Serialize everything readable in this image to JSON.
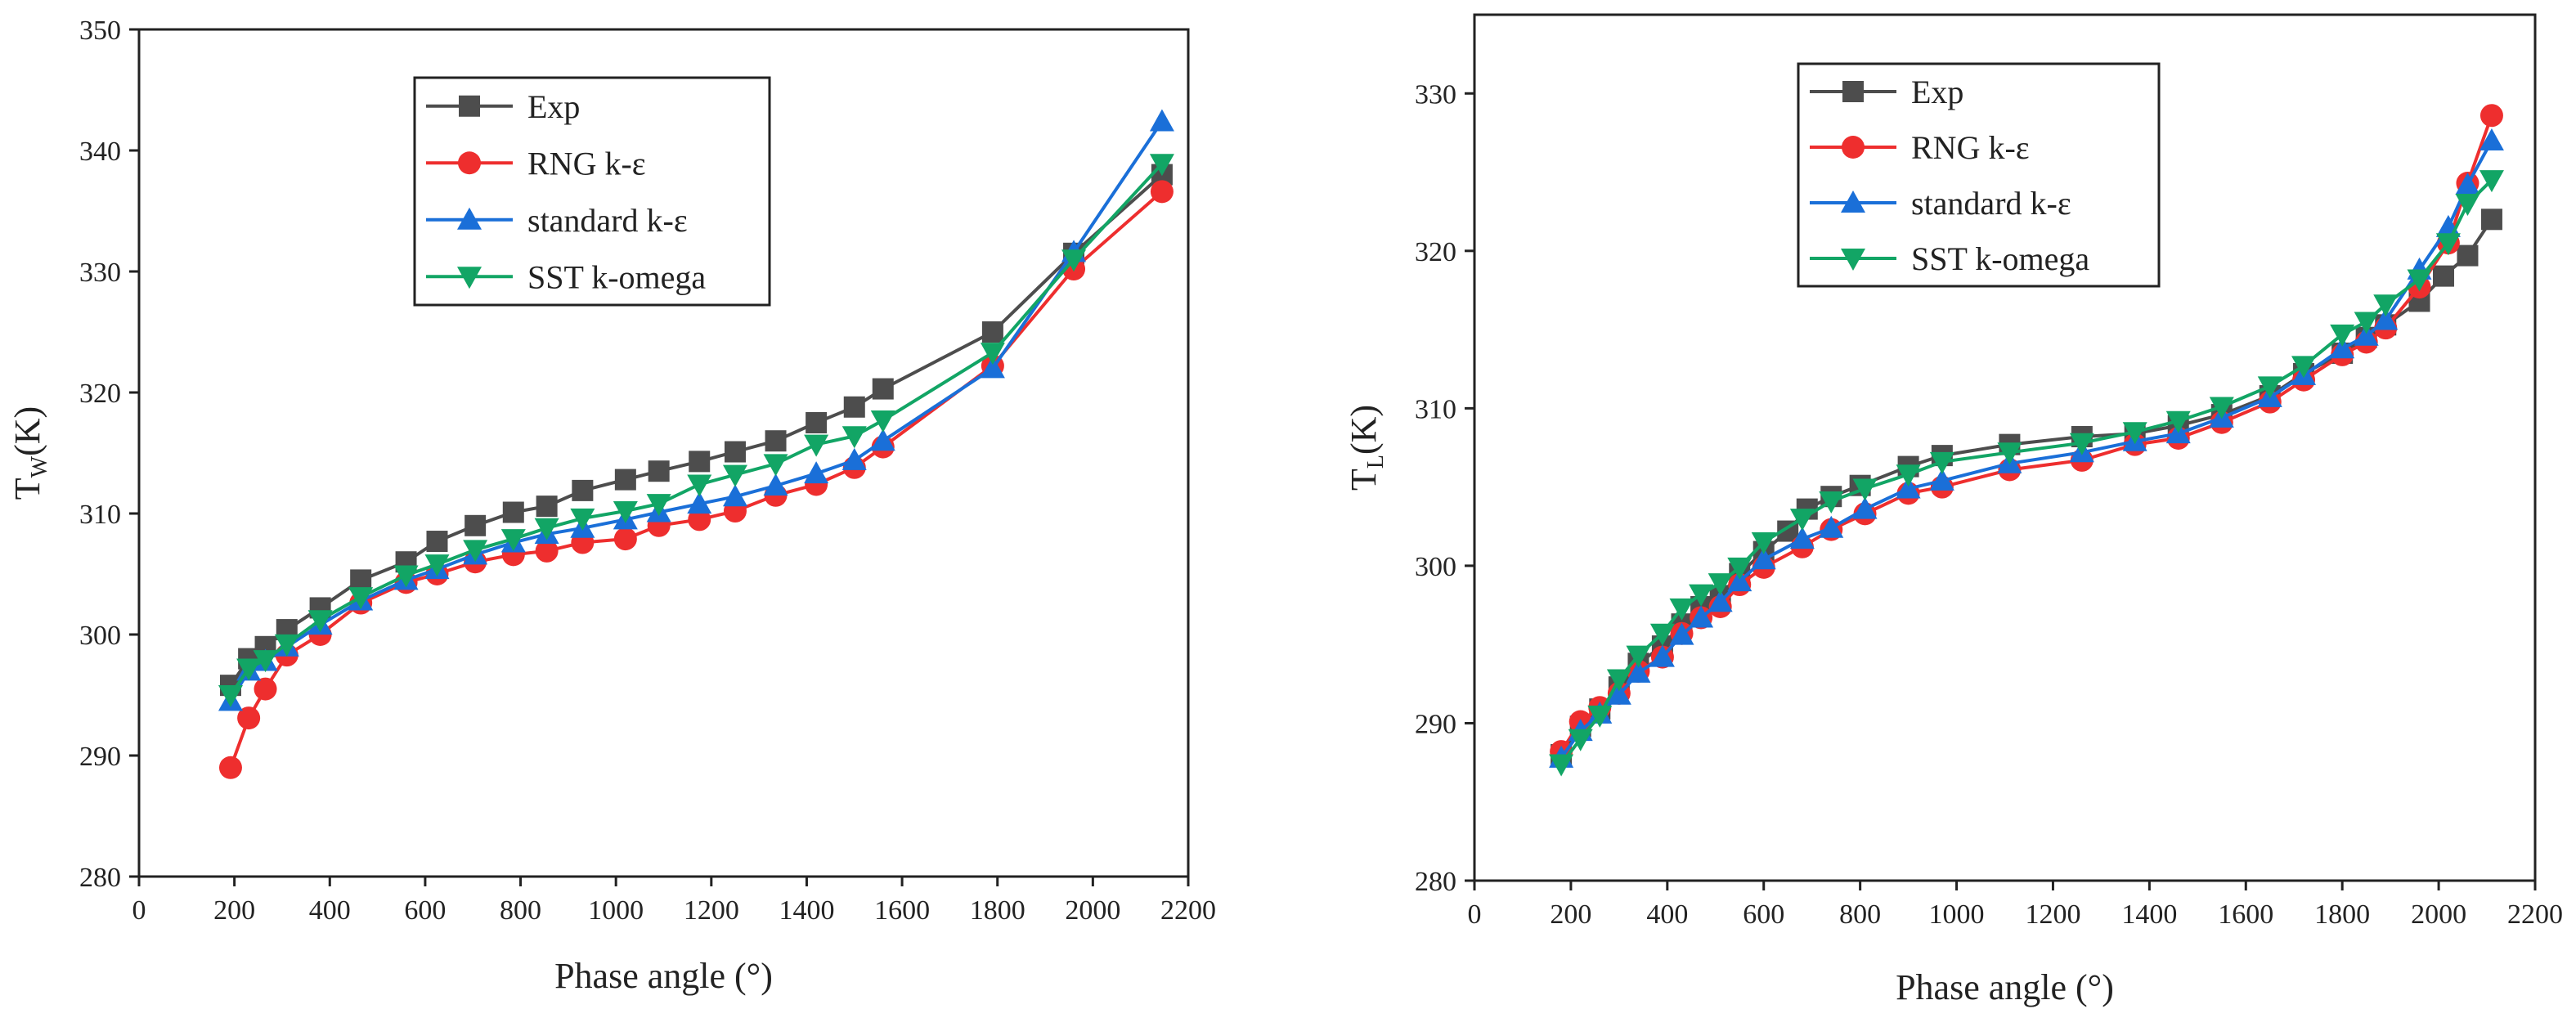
{
  "chart_data": [
    {
      "type": "line",
      "title": "",
      "xlabel": "Phase angle (°)",
      "ylabel_main": "T",
      "ylabel_sub": "W",
      "ylabel_unit": "(K)",
      "xlim": [
        0,
        2200
      ],
      "ylim": [
        280,
        350
      ],
      "xticks": [
        0,
        200,
        400,
        600,
        800,
        1000,
        1200,
        1400,
        1600,
        1800,
        2000,
        2200
      ],
      "yticks": [
        280,
        290,
        300,
        310,
        320,
        330,
        340,
        350
      ],
      "legend_position": "top-center",
      "series": [
        {
          "name": "Exp",
          "color": "#4d4d4d",
          "marker": "square",
          "points": [
            [
              192,
              295.8
            ],
            [
              230,
              298
            ],
            [
              265,
              299
            ],
            [
              310,
              300.4
            ],
            [
              380,
              302.2
            ],
            [
              465,
              304.5
            ],
            [
              560,
              306
            ],
            [
              625,
              307.7
            ],
            [
              705,
              309
            ],
            [
              785,
              310.1
            ],
            [
              855,
              310.6
            ],
            [
              930,
              311.9
            ],
            [
              1020,
              312.8
            ],
            [
              1090,
              313.5
            ],
            [
              1175,
              314.3
            ],
            [
              1250,
              315.1
            ],
            [
              1335,
              316
            ],
            [
              1420,
              317.5
            ],
            [
              1500,
              318.8
            ],
            [
              1560,
              320.3
            ],
            [
              1790,
              325
            ],
            [
              1960,
              331.5
            ],
            [
              2145,
              338
            ]
          ]
        },
        {
          "name": "RNG k-ε",
          "color": "#ee2e2e",
          "marker": "circle",
          "points": [
            [
              192,
              289
            ],
            [
              230,
              293.1
            ],
            [
              265,
              295.5
            ],
            [
              310,
              298.3
            ],
            [
              380,
              300
            ],
            [
              465,
              302.6
            ],
            [
              560,
              304.3
            ],
            [
              625,
              305
            ],
            [
              705,
              306
            ],
            [
              785,
              306.6
            ],
            [
              855,
              306.9
            ],
            [
              930,
              307.6
            ],
            [
              1020,
              307.9
            ],
            [
              1090,
              309
            ],
            [
              1175,
              309.5
            ],
            [
              1250,
              310.2
            ],
            [
              1335,
              311.5
            ],
            [
              1420,
              312.4
            ],
            [
              1500,
              313.8
            ],
            [
              1560,
              315.5
            ],
            [
              1790,
              322.2
            ],
            [
              1960,
              330.2
            ],
            [
              2145,
              336.6
            ]
          ]
        },
        {
          "name": "standard k-ε",
          "color": "#1a6fd8",
          "marker": "triangle-up",
          "points": [
            [
              192,
              294.5
            ],
            [
              230,
              297
            ],
            [
              265,
              297.8
            ],
            [
              310,
              299
            ],
            [
              380,
              300.8
            ],
            [
              465,
              302.8
            ],
            [
              560,
              304.5
            ],
            [
              625,
              305.4
            ],
            [
              705,
              306.6
            ],
            [
              785,
              307.6
            ],
            [
              855,
              308.3
            ],
            [
              930,
              308.8
            ],
            [
              1020,
              309.5
            ],
            [
              1090,
              310.1
            ],
            [
              1175,
              310.8
            ],
            [
              1250,
              311.4
            ],
            [
              1335,
              312.3
            ],
            [
              1420,
              313.3
            ],
            [
              1500,
              314.4
            ],
            [
              1560,
              316
            ],
            [
              1790,
              322
            ],
            [
              1960,
              331.6
            ],
            [
              2145,
              342.4
            ]
          ]
        },
        {
          "name": "SST k-omega",
          "color": "#12a565",
          "marker": "triangle-down",
          "points": [
            [
              192,
              295
            ],
            [
              230,
              297.2
            ],
            [
              265,
              297.9
            ],
            [
              310,
              299.2
            ],
            [
              380,
              301.2
            ],
            [
              465,
              303.1
            ],
            [
              560,
              304.9
            ],
            [
              625,
              305.8
            ],
            [
              705,
              307
            ],
            [
              785,
              307.9
            ],
            [
              855,
              308.8
            ],
            [
              930,
              309.6
            ],
            [
              1020,
              310.2
            ],
            [
              1090,
              310.8
            ],
            [
              1175,
              312.4
            ],
            [
              1250,
              313.2
            ],
            [
              1335,
              314.1
            ],
            [
              1420,
              315.7
            ],
            [
              1500,
              316.4
            ],
            [
              1560,
              317.7
            ],
            [
              1790,
              323.3
            ],
            [
              1960,
              331
            ],
            [
              2145,
              338.9
            ]
          ]
        }
      ]
    },
    {
      "type": "line",
      "title": "",
      "xlabel": "Phase angle (°)",
      "ylabel_main": "T",
      "ylabel_sub": "L",
      "ylabel_unit": "(K)",
      "xlim": [
        0,
        2200
      ],
      "ylim": [
        280,
        335
      ],
      "xticks": [
        0,
        200,
        400,
        600,
        800,
        1000,
        1200,
        1400,
        1600,
        1800,
        2000,
        2200
      ],
      "yticks": [
        280,
        290,
        300,
        310,
        320,
        330
      ],
      "legend_position": "top-center",
      "series": [
        {
          "name": "Exp",
          "color": "#4d4d4d",
          "marker": "square",
          "points": [
            [
              180,
              288
            ],
            [
              220,
              289.8
            ],
            [
              260,
              290.9
            ],
            [
              300,
              292.3
            ],
            [
              340,
              293.8
            ],
            [
              390,
              294.9
            ],
            [
              430,
              296.3
            ],
            [
              470,
              297.4
            ],
            [
              510,
              298.1
            ],
            [
              550,
              299.5
            ],
            [
              600,
              300.9
            ],
            [
              650,
              302.2
            ],
            [
              690,
              303.6
            ],
            [
              740,
              304.4
            ],
            [
              800,
              305.1
            ],
            [
              900,
              306.3
            ],
            [
              970,
              307
            ],
            [
              1110,
              307.7
            ],
            [
              1260,
              308.2
            ],
            [
              1370,
              308.4
            ],
            [
              1460,
              308.9
            ],
            [
              1550,
              309.6
            ],
            [
              1650,
              310.8
            ],
            [
              1720,
              312.2
            ],
            [
              1800,
              313.5
            ],
            [
              1850,
              314.5
            ],
            [
              1890,
              315.3
            ],
            [
              1960,
              316.8
            ],
            [
              2010,
              318.4
            ],
            [
              2060,
              319.7
            ],
            [
              2110,
              322
            ]
          ]
        },
        {
          "name": "RNG k-ε",
          "color": "#ee2e2e",
          "marker": "circle",
          "points": [
            [
              180,
              288.2
            ],
            [
              220,
              290.1
            ],
            [
              260,
              291
            ],
            [
              300,
              291.9
            ],
            [
              340,
              293.3
            ],
            [
              390,
              294.2
            ],
            [
              430,
              295.7
            ],
            [
              470,
              296.7
            ],
            [
              510,
              297.4
            ],
            [
              550,
              298.8
            ],
            [
              600,
              299.9
            ],
            [
              680,
              301.2
            ],
            [
              740,
              302.3
            ],
            [
              810,
              303.3
            ],
            [
              900,
              304.6
            ],
            [
              970,
              305
            ],
            [
              1110,
              306.1
            ],
            [
              1260,
              306.7
            ],
            [
              1370,
              307.7
            ],
            [
              1460,
              308.1
            ],
            [
              1550,
              309.1
            ],
            [
              1650,
              310.4
            ],
            [
              1720,
              311.8
            ],
            [
              1800,
              313.4
            ],
            [
              1850,
              314.2
            ],
            [
              1890,
              315.1
            ],
            [
              1960,
              317.7
            ],
            [
              2020,
              320.5
            ],
            [
              2060,
              324.3
            ],
            [
              2110,
              328.6
            ]
          ]
        },
        {
          "name": "standard k-ε",
          "color": "#1a6fd8",
          "marker": "triangle-up",
          "points": [
            [
              180,
              287.8
            ],
            [
              220,
              289.5
            ],
            [
              260,
              290.6
            ],
            [
              300,
              291.8
            ],
            [
              340,
              293.2
            ],
            [
              390,
              294.2
            ],
            [
              430,
              295.6
            ],
            [
              470,
              296.7
            ],
            [
              510,
              297.7
            ],
            [
              550,
              299
            ],
            [
              600,
              300.4
            ],
            [
              680,
              301.7
            ],
            [
              740,
              302.4
            ],
            [
              810,
              303.6
            ],
            [
              900,
              304.9
            ],
            [
              970,
              305.4
            ],
            [
              1110,
              306.5
            ],
            [
              1260,
              307.2
            ],
            [
              1370,
              307.9
            ],
            [
              1460,
              308.4
            ],
            [
              1550,
              309.4
            ],
            [
              1650,
              310.7
            ],
            [
              1720,
              312.1
            ],
            [
              1800,
              313.8
            ],
            [
              1850,
              314.6
            ],
            [
              1890,
              315.6
            ],
            [
              1960,
              318.8
            ],
            [
              2020,
              321.5
            ],
            [
              2060,
              324.2
            ],
            [
              2110,
              327
            ]
          ]
        },
        {
          "name": "SST k-omega",
          "color": "#12a565",
          "marker": "triangle-down",
          "points": [
            [
              180,
              287.4
            ],
            [
              220,
              289
            ],
            [
              260,
              290.5
            ],
            [
              300,
              292.8
            ],
            [
              340,
              294.3
            ],
            [
              390,
              295.7
            ],
            [
              430,
              297.3
            ],
            [
              470,
              298.2
            ],
            [
              510,
              298.9
            ],
            [
              550,
              299.9
            ],
            [
              600,
              301.5
            ],
            [
              680,
              303
            ],
            [
              740,
              304.1
            ],
            [
              810,
              304.9
            ],
            [
              900,
              305.8
            ],
            [
              970,
              306.6
            ],
            [
              1110,
              307.2
            ],
            [
              1260,
              307.8
            ],
            [
              1370,
              308.5
            ],
            [
              1460,
              309.2
            ],
            [
              1550,
              310.1
            ],
            [
              1650,
              311.4
            ],
            [
              1720,
              312.7
            ],
            [
              1800,
              314.7
            ],
            [
              1850,
              315.5
            ],
            [
              1890,
              316.6
            ],
            [
              1960,
              318.2
            ],
            [
              2020,
              320.5
            ],
            [
              2060,
              323
            ],
            [
              2110,
              324.5
            ]
          ]
        }
      ]
    }
  ]
}
